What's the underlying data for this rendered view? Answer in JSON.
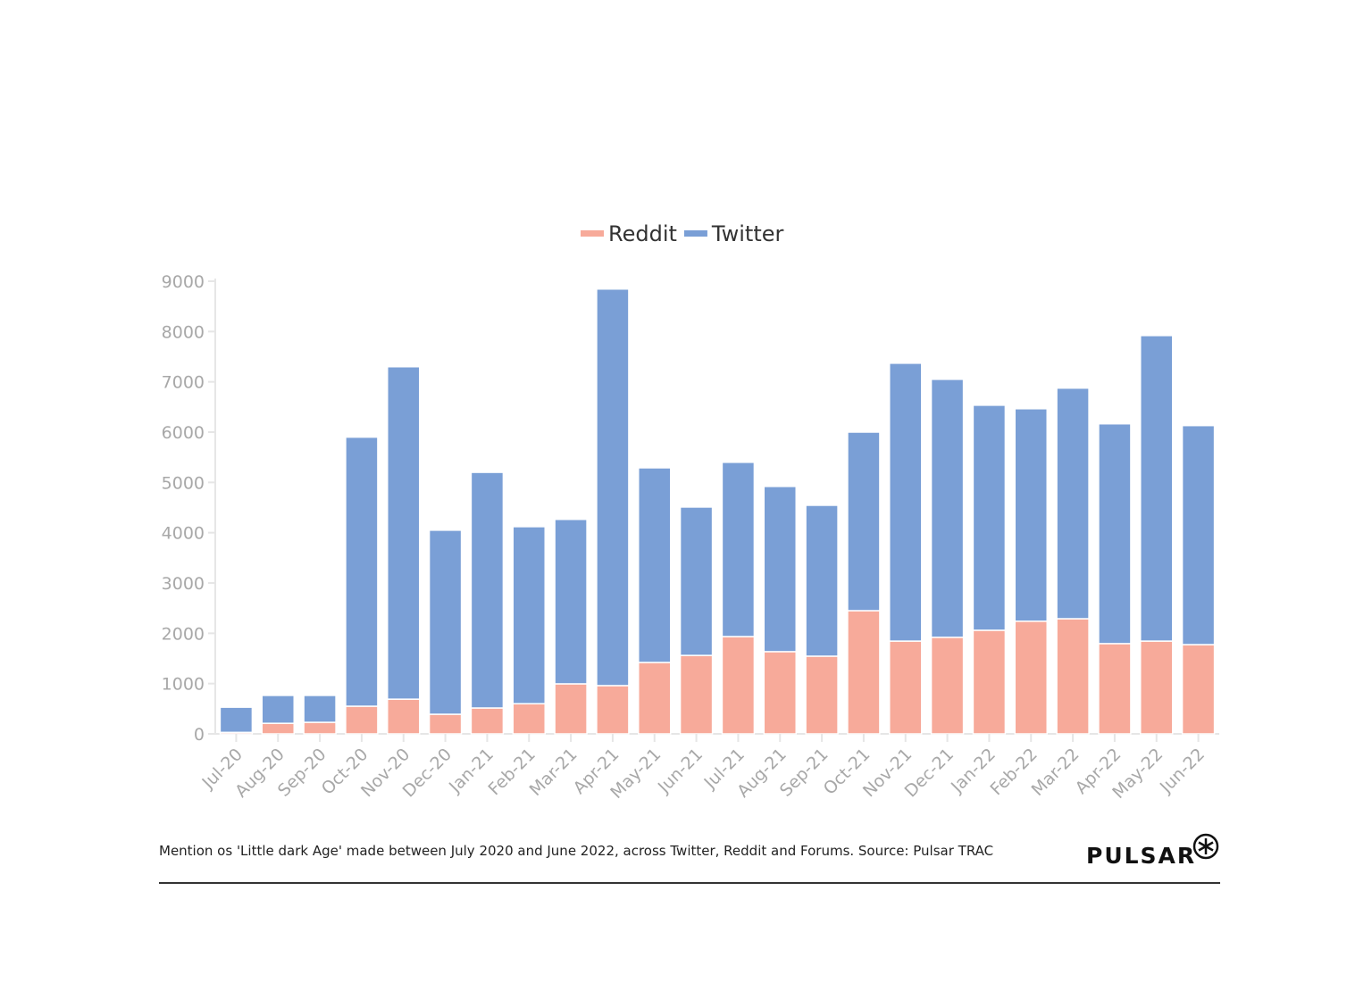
{
  "chart_data": {
    "type": "bar",
    "stacked": true,
    "categories": [
      "Jul-20",
      "Aug-20",
      "Sep-20",
      "Oct-20",
      "Nov-20",
      "Dec-20",
      "Jan-21",
      "Feb-21",
      "Mar-21",
      "Apr-21",
      "May-21",
      "Jun-21",
      "Jul-21",
      "Aug-21",
      "Sep-21",
      "Oct-21",
      "Nov-21",
      "Dec-21",
      "Jan-22",
      "Feb-22",
      "Mar-22",
      "Apr-22",
      "May-22",
      "Jun-22"
    ],
    "series": [
      {
        "name": "Reddit",
        "color": "#f7aa9a",
        "values": [
          30,
          210,
          230,
          550,
          690,
          390,
          515,
          600,
          995,
          960,
          1420,
          1560,
          1935,
          1635,
          1545,
          2450,
          1845,
          1920,
          2060,
          2240,
          2290,
          1795,
          1845,
          1775
        ]
      },
      {
        "name": "Twitter",
        "color": "#7a9fd6",
        "values": [
          500,
          555,
          535,
          5350,
          6610,
          3660,
          4685,
          3520,
          3270,
          7885,
          3870,
          2950,
          3465,
          3285,
          3000,
          3550,
          5525,
          5130,
          4475,
          4225,
          4585,
          4370,
          6075,
          4355
        ]
      }
    ],
    "ylim": [
      0,
      9000
    ],
    "yticks": [
      "0",
      "1000",
      "2000",
      "3000",
      "4000",
      "5000",
      "6000",
      "7000",
      "8000",
      "9000"
    ],
    "legend_position": "top-center",
    "grid": false
  },
  "caption": "Mention os 'Little dark Age' made between July 2020 and June 2022, across Twitter, Reddit and Forums. Source: Pulsar TRAC",
  "logo": "PULSAR"
}
